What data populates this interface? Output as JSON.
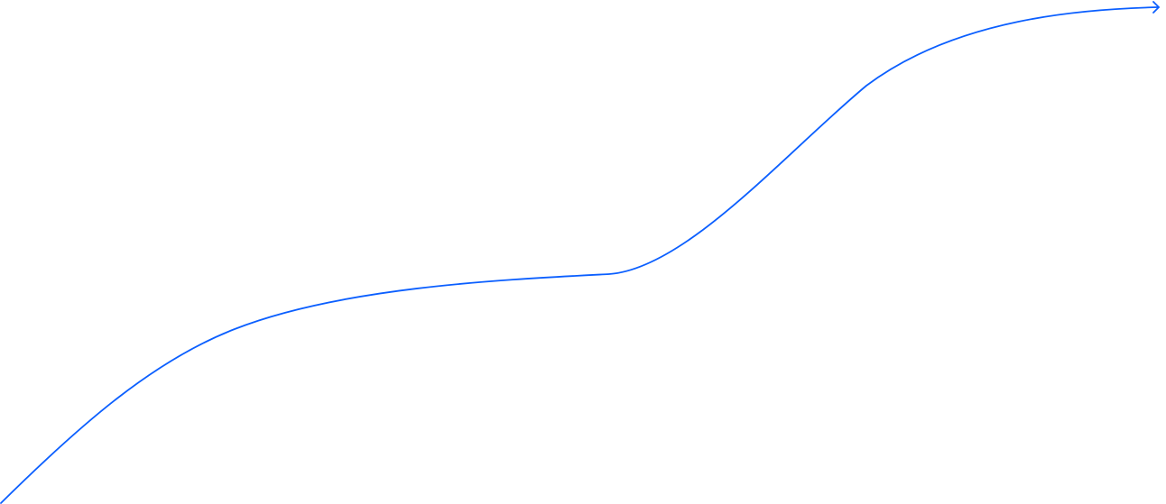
{
  "arrow": {
    "color": "#0B5FFF",
    "icon": "curved-arrow-right-icon"
  }
}
